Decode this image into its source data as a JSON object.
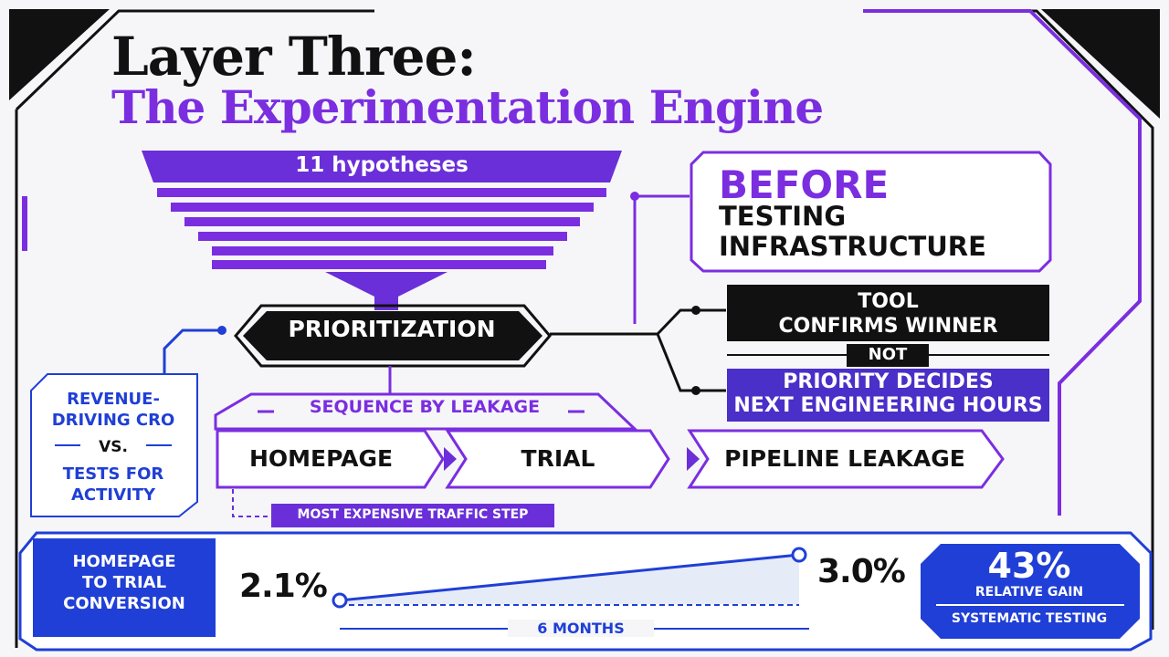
{
  "title": {
    "line1": "Layer Three:",
    "line2": "The Experimentation Engine"
  },
  "funnel": {
    "label": "11 hypotheses"
  },
  "prioritization": {
    "label": "PRIORITIZATION"
  },
  "before": {
    "heading": "BEFORE",
    "sub1": "TESTING",
    "sub2": "INFRASTRUCTURE"
  },
  "decision": {
    "tool_line1": "TOOL",
    "tool_line2": "CONFIRMS WINNER",
    "not": "NOT",
    "priority_line1": "PRIORITY DECIDES",
    "priority_line2": "NEXT ENGINEERING HOURS"
  },
  "sequence": {
    "label": "SEQUENCE BY LEAKAGE",
    "steps": [
      "HOMEPAGE",
      "TRIAL",
      "PIPELINE LEAKAGE"
    ],
    "note": "MOST EXPENSIVE TRAFFIC STEP"
  },
  "comparison": {
    "line1": "REVENUE-",
    "line2": "DRIVING CRO",
    "vs": "VS.",
    "line3": "TESTS FOR",
    "line4": "ACTIVITY"
  },
  "metric": {
    "label_line1": "HOMEPAGE",
    "label_line2": "TO TRIAL",
    "label_line3": "CONVERSION",
    "start": "2.1%",
    "end": "3.0%",
    "period": "6 MONTHS",
    "gain": "43%",
    "gain_label": "RELATIVE GAIN",
    "method": "SYSTEMATIC TESTING"
  },
  "colors": {
    "purple": "#7b2ee0",
    "blue": "#1f3fd6",
    "black": "#111111",
    "background": "#f6f6f8"
  }
}
